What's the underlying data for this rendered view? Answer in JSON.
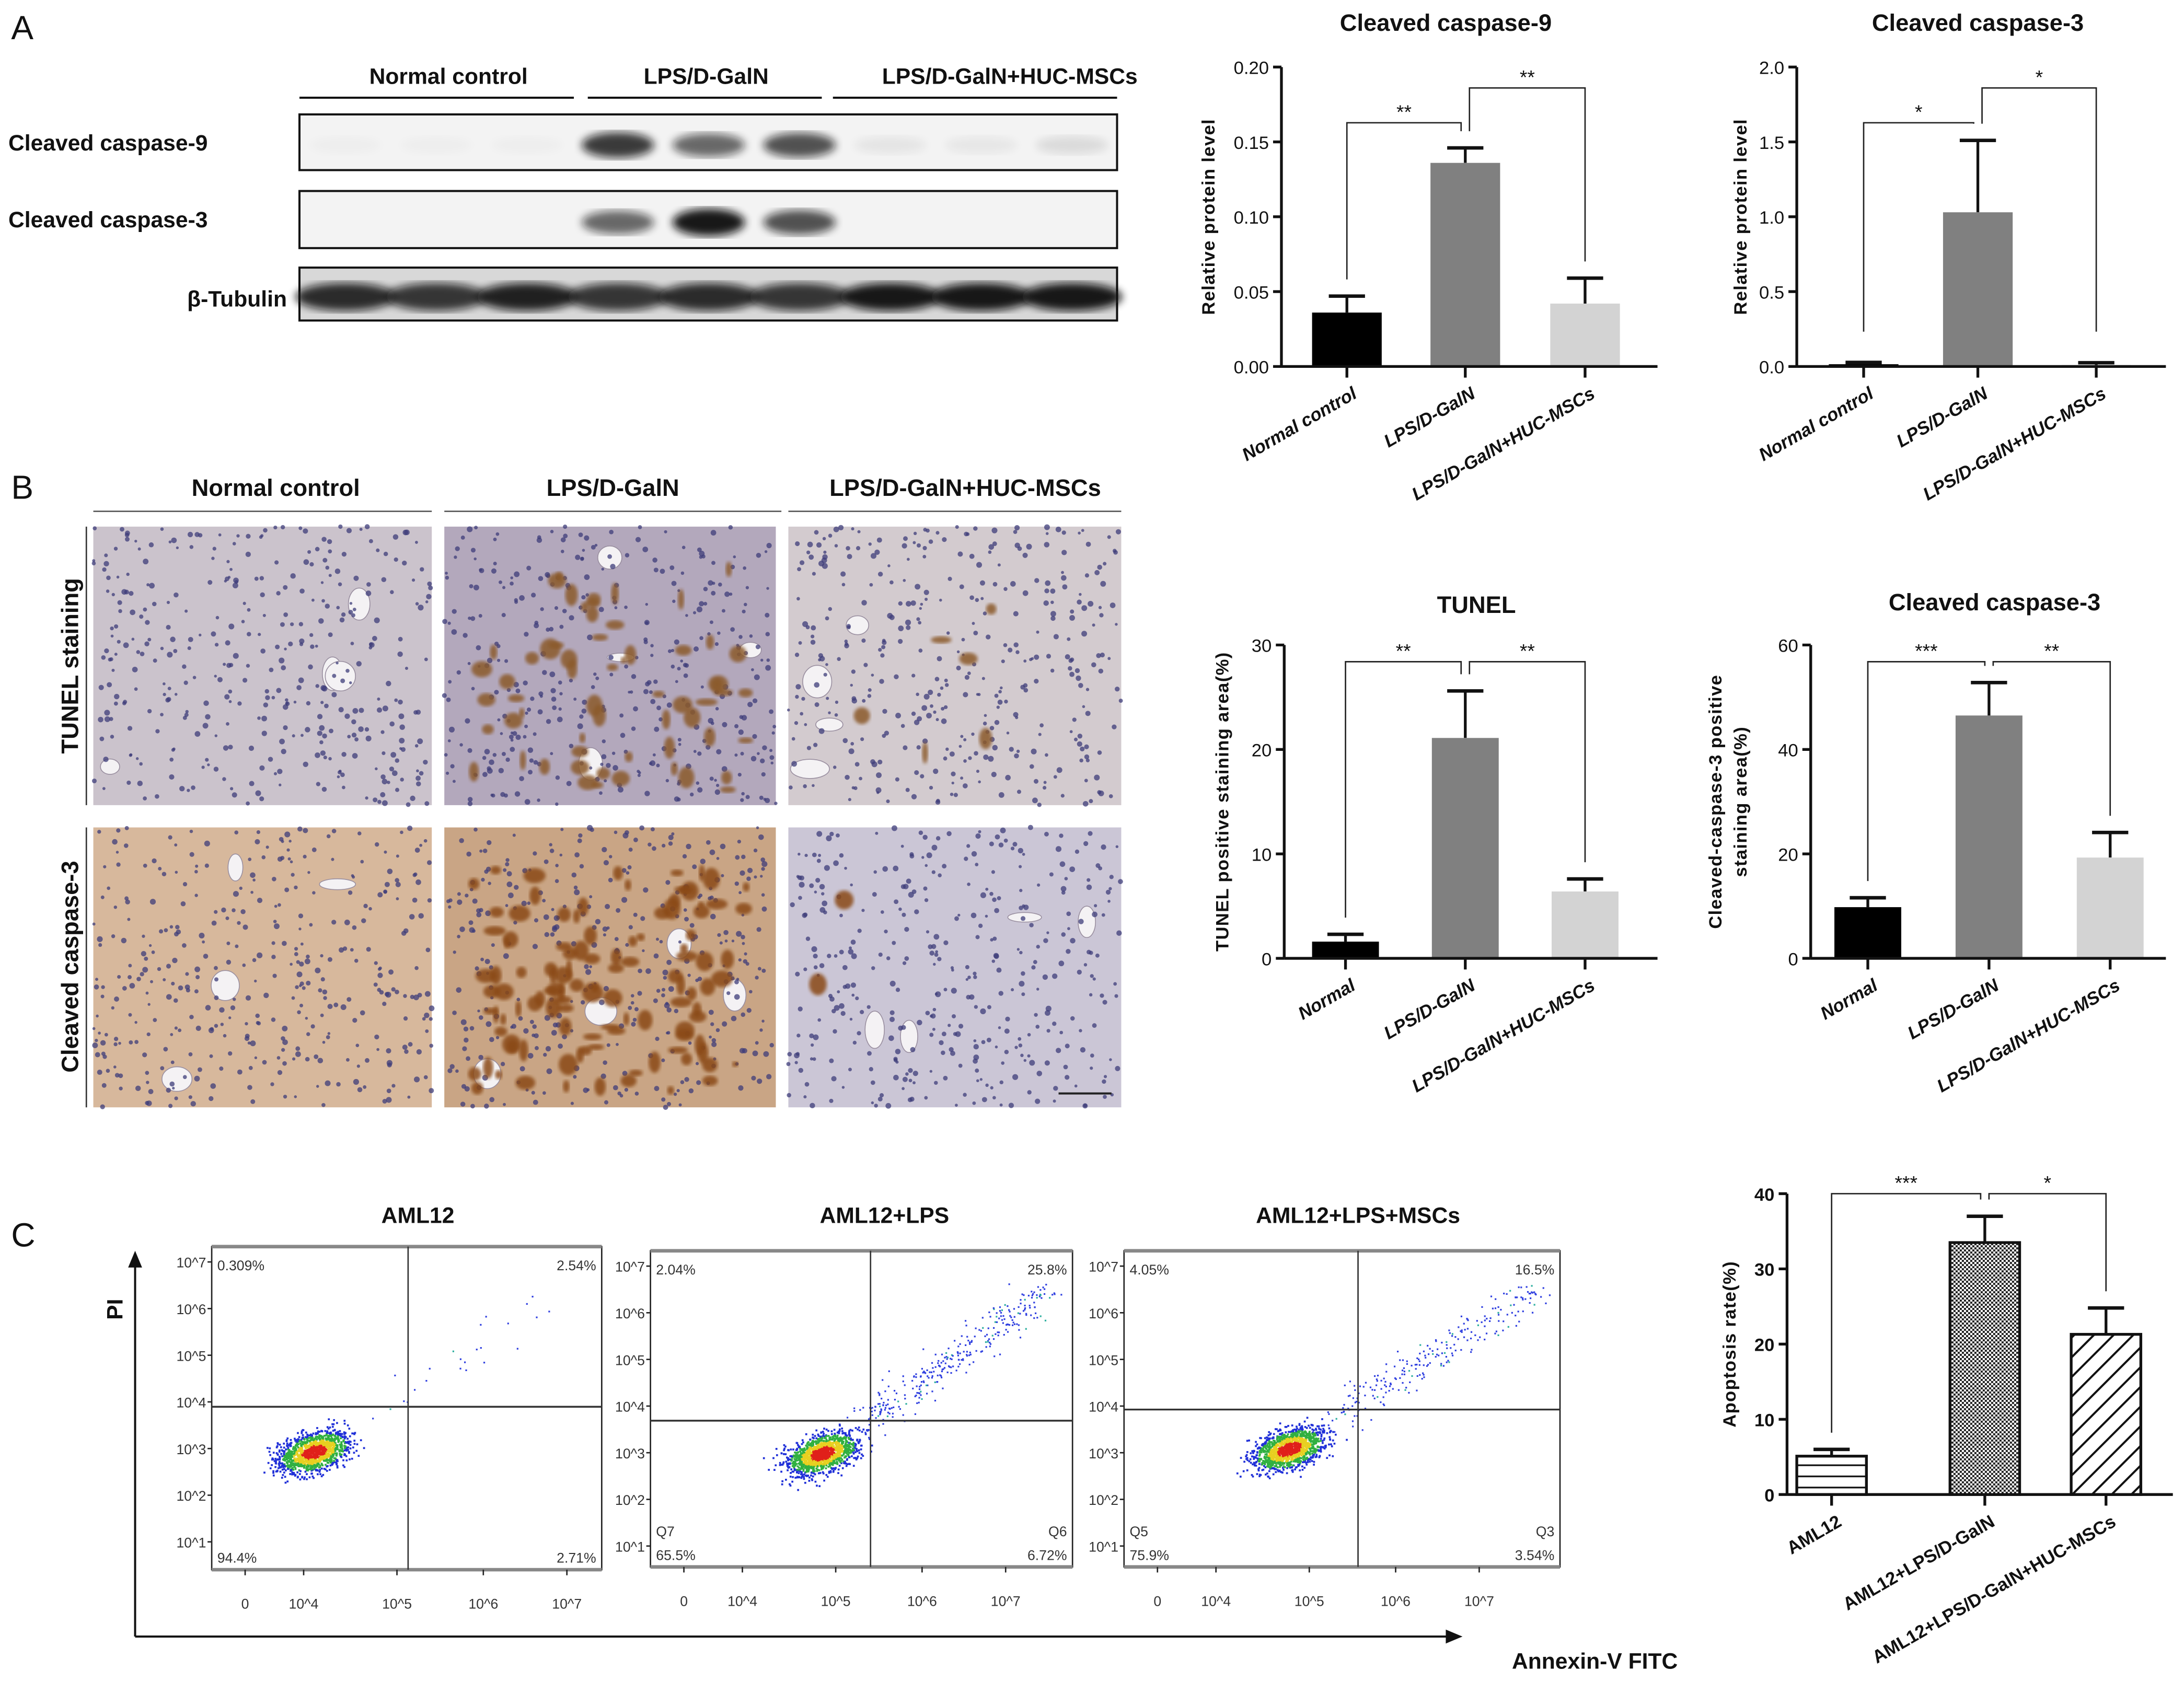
{
  "panel_labels": {
    "a": "A",
    "b": "B",
    "c": "C"
  },
  "western_blot": {
    "groups": [
      "Normal control",
      "LPS/D-GalN",
      "LPS/D-GalN+HUC-MSCs"
    ],
    "rows": [
      {
        "label": "Cleaved caspase-9",
        "band_intensity": [
          0.02,
          0.02,
          0.02,
          0.8,
          0.6,
          0.7,
          0.06,
          0.05,
          0.1
        ]
      },
      {
        "label": "Cleaved caspase-3",
        "band_intensity": [
          0.0,
          0.0,
          0.0,
          0.6,
          0.95,
          0.7,
          0.0,
          0.0,
          0.0
        ]
      },
      {
        "label": "β-Tubulin",
        "band_intensity": [
          0.85,
          0.8,
          0.9,
          0.8,
          0.85,
          0.8,
          0.95,
          0.95,
          0.95
        ]
      }
    ]
  },
  "ihc": {
    "groups": [
      "Normal control",
      "LPS/D-GalN",
      "LPS/D-GalN+HUC-MSCs"
    ],
    "rows": [
      "TUNEL staining",
      "Cleaved caspase-3"
    ]
  },
  "flow": {
    "y_axis_label": "PI",
    "x_axis_label": "Annexin-V FITC",
    "y_ticks": [
      "10^7",
      "10^6",
      "10^5",
      "10^4",
      "10^3",
      "10^2",
      "10^1"
    ],
    "x_ticks": [
      "0",
      "10^4",
      "10^5",
      "10^6",
      "10^7"
    ],
    "plots": [
      {
        "title": "AML12",
        "ul": "0.309%",
        "ur": "2.54%",
        "ll": "94.4%",
        "lr": "2.71%",
        "gate_ll": "",
        "gate_lr": ""
      },
      {
        "title": "AML12+LPS",
        "ul": "2.04%",
        "ur": "25.8%",
        "ll": "65.5%",
        "lr": "6.72%",
        "gate_ll": "Q7",
        "gate_lr": "Q6"
      },
      {
        "title": "AML12+LPS+MSCs",
        "ul": "4.05%",
        "ur": "16.5%",
        "ll": "75.9%",
        "lr": "3.54%",
        "gate_ll": "Q5",
        "gate_lr": "Q3"
      }
    ]
  },
  "chart_data": [
    {
      "type": "bar",
      "title": "Cleaved caspase-9",
      "ylabel": "Relative protein level",
      "xlabel": "",
      "categories": [
        "Normal control",
        "LPS/D-GalN",
        "LPS/D-GalN+HUC-MSCs"
      ],
      "values": [
        0.036,
        0.136,
        0.042
      ],
      "errors": [
        0.011,
        0.01,
        0.017
      ],
      "ylim": [
        0,
        0.2
      ],
      "yticks": [
        "0.00",
        "0.05",
        "0.10",
        "0.15",
        "0.20"
      ],
      "colors": [
        "#000000",
        "#808080",
        "#d3d3d3"
      ],
      "significance": [
        {
          "pair": [
            0,
            1
          ],
          "label": "**"
        },
        {
          "pair": [
            1,
            2
          ],
          "label": "**"
        }
      ]
    },
    {
      "type": "bar",
      "title": "Cleaved caspase-3",
      "ylabel": "Relative protein level",
      "xlabel": "",
      "categories": [
        "Normal control",
        "LPS/D-GalN",
        "LPS/D-GalN+HUC-MSCs"
      ],
      "values": [
        0.015,
        1.03,
        0.01
      ],
      "errors": [
        0.012,
        0.48,
        0.015
      ],
      "ylim": [
        0,
        2.0
      ],
      "yticks": [
        "0.0",
        "0.5",
        "1.0",
        "1.5",
        "2.0"
      ],
      "colors": [
        "#000000",
        "#808080",
        "#d3d3d3"
      ],
      "significance": [
        {
          "pair": [
            0,
            1
          ],
          "label": "*"
        },
        {
          "pair": [
            1,
            2
          ],
          "label": "*"
        }
      ]
    },
    {
      "type": "bar",
      "title": "TUNEL",
      "ylabel": "TUNEL positive staining area(%)",
      "xlabel": "",
      "categories": [
        "Normal",
        "LPS/D-GalN",
        "LPS/D-GalN+HUC-MSCs"
      ],
      "values": [
        1.6,
        21.1,
        6.4
      ],
      "errors": [
        0.7,
        4.5,
        1.2
      ],
      "ylim": [
        0,
        30
      ],
      "yticks": [
        "0",
        "10",
        "20",
        "30"
      ],
      "colors": [
        "#000000",
        "#808080",
        "#d3d3d3"
      ],
      "significance": [
        {
          "pair": [
            0,
            1
          ],
          "label": "**"
        },
        {
          "pair": [
            1,
            2
          ],
          "label": "**"
        }
      ]
    },
    {
      "type": "bar",
      "title": "Cleaved caspase-3",
      "ylabel": "Cleaved-caspase-3 positive staining area(%)",
      "ylabel_lines": [
        "Cleaved-caspase-3 positive",
        "staining area(%)"
      ],
      "xlabel": "",
      "categories": [
        "Normal",
        "LPS/D-GalN",
        "LPS/D-GalN+HUC-MSCs"
      ],
      "values": [
        9.8,
        46.5,
        19.3
      ],
      "errors": [
        1.8,
        6.3,
        4.8
      ],
      "ylim": [
        0,
        60
      ],
      "yticks": [
        "0",
        "20",
        "40",
        "60"
      ],
      "colors": [
        "#000000",
        "#808080",
        "#d3d3d3"
      ],
      "significance": [
        {
          "pair": [
            0,
            1
          ],
          "label": "***"
        },
        {
          "pair": [
            1,
            2
          ],
          "label": "**"
        }
      ]
    },
    {
      "type": "bar",
      "title": "",
      "ylabel": "Apoptosis rate(%)",
      "xlabel": "",
      "categories": [
        "AML12",
        "AML12+LPS/D-GalN",
        "AML12+LPS/D-GalN+HUC-MSCs"
      ],
      "values": [
        5.1,
        33.5,
        21.3
      ],
      "errors": [
        0.9,
        3.5,
        3.5
      ],
      "ylim": [
        0,
        40
      ],
      "yticks": [
        "0",
        "10",
        "20",
        "30",
        "40"
      ],
      "fill_patterns": [
        "horizontal-lines",
        "checkered",
        "diagonal-lines"
      ],
      "significance": [
        {
          "pair": [
            0,
            1
          ],
          "label": "***"
        },
        {
          "pair": [
            1,
            2
          ],
          "label": "*"
        }
      ]
    }
  ]
}
